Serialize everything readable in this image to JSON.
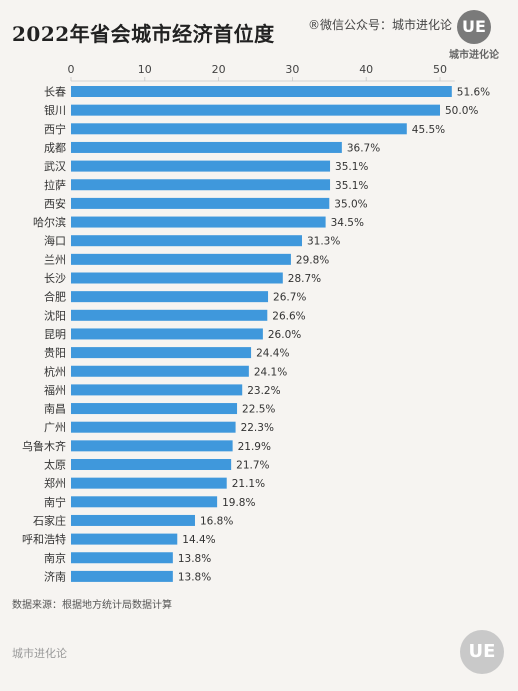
{
  "title": "2022年省会城市经济首位度",
  "watermark": "®微信公众号：城市进化论",
  "logo": {
    "mark": "UE",
    "name": "城市进化论"
  },
  "source": "数据来源：根据地方统计局数据计算",
  "footer": {
    "brand": "城市进化论",
    "mark": "UE"
  },
  "chart_data": {
    "type": "bar",
    "orientation": "horizontal",
    "title": "2022年省会城市经济首位度",
    "xlabel": "",
    "ylabel": "",
    "xlim": [
      0,
      52
    ],
    "ticks": [
      0,
      10,
      20,
      30,
      40,
      50
    ],
    "axis_position": "top",
    "grid": false,
    "bar_color": "#3f98dc",
    "value_suffix": "%",
    "categories": [
      "长春",
      "银川",
      "西宁",
      "成都",
      "武汉",
      "拉萨",
      "西安",
      "哈尔滨",
      "海口",
      "兰州",
      "长沙",
      "合肥",
      "沈阳",
      "昆明",
      "贵阳",
      "杭州",
      "福州",
      "南昌",
      "广州",
      "乌鲁木齐",
      "太原",
      "郑州",
      "南宁",
      "石家庄",
      "呼和浩特",
      "南京",
      "济南"
    ],
    "values": [
      51.6,
      50.0,
      45.5,
      36.7,
      35.1,
      35.1,
      35.0,
      34.5,
      31.3,
      29.8,
      28.7,
      26.7,
      26.6,
      26.0,
      24.4,
      24.1,
      23.2,
      22.5,
      22.3,
      21.9,
      21.7,
      21.1,
      19.8,
      16.8,
      14.4,
      13.8,
      13.8
    ],
    "labels": [
      "51.6%",
      "50.0%",
      "45.5%",
      "36.7%",
      "35.1%",
      "35.1%",
      "35.0%",
      "34.5%",
      "31.3%",
      "29.8%",
      "28.7%",
      "26.7%",
      "26.6%",
      "26.0%",
      "24.4%",
      "24.1%",
      "23.2%",
      "22.5%",
      "22.3%",
      "21.9%",
      "21.7%",
      "21.1%",
      "19.8%",
      "16.8%",
      "14.4%",
      "13.8%",
      "13.8%"
    ]
  }
}
